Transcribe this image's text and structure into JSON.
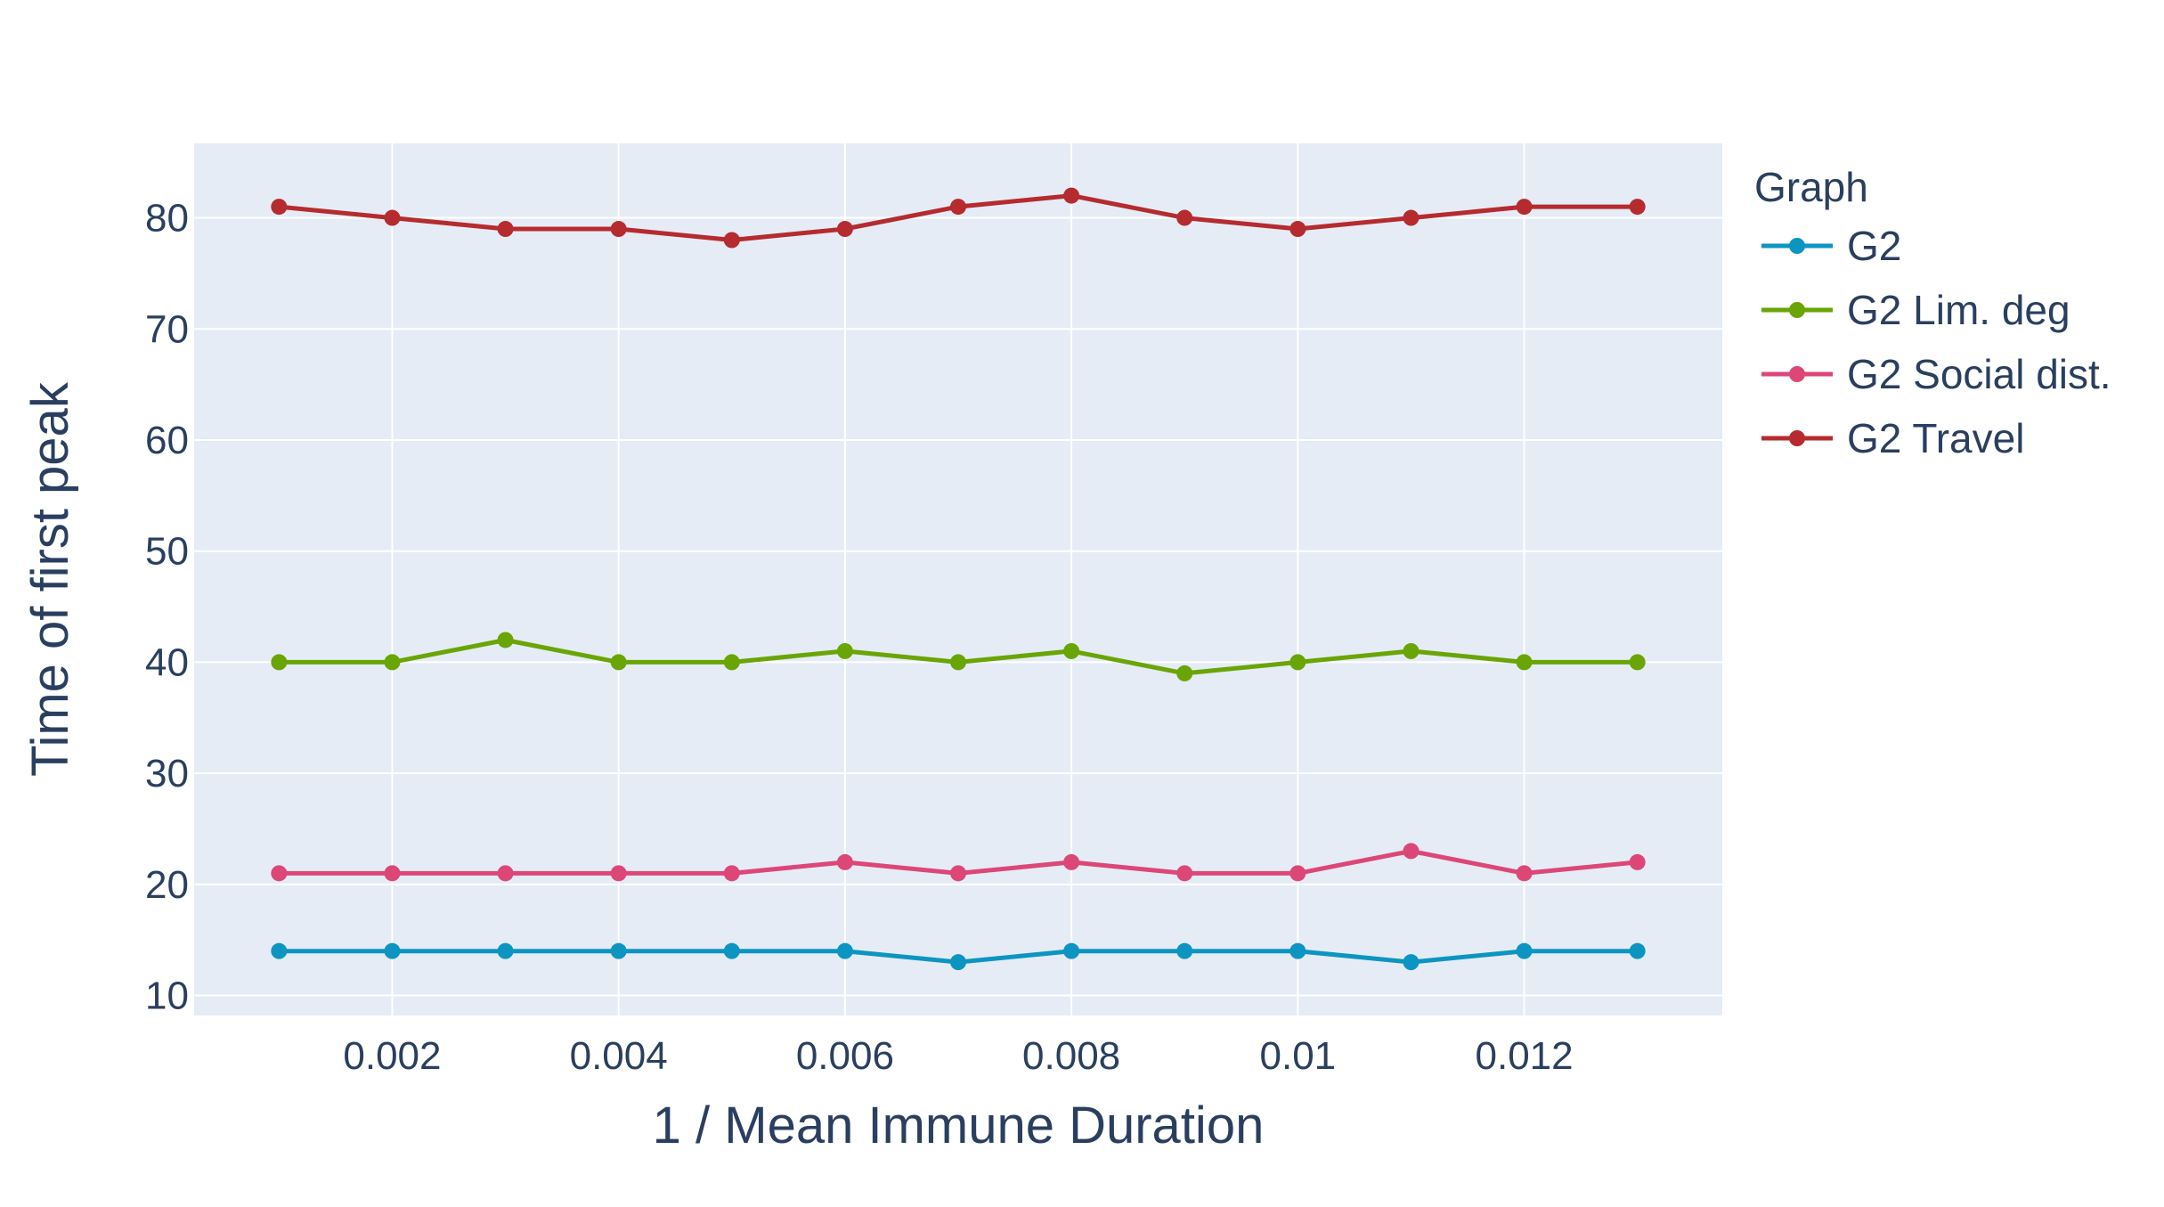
{
  "chart_data": {
    "type": "line",
    "xlabel": "1 / Mean Immune Duration",
    "ylabel": "Time of first peak",
    "xlim": [
      0.00025,
      0.01375
    ],
    "ylim": [
      8.2,
      86.7
    ],
    "x": [
      0.001,
      0.002,
      0.003,
      0.004,
      0.005,
      0.006,
      0.007,
      0.008,
      0.009,
      0.01,
      0.011,
      0.012,
      0.013
    ],
    "x_ticks": [
      0.002,
      0.004,
      0.006,
      0.008,
      0.01,
      0.012
    ],
    "x_tick_labels": [
      "0.002",
      "0.004",
      "0.006",
      "0.008",
      "0.01",
      "0.012"
    ],
    "y_ticks": [
      10,
      20,
      30,
      40,
      50,
      60,
      70,
      80
    ],
    "y_tick_labels": [
      "10",
      "20",
      "30",
      "40",
      "50",
      "60",
      "70",
      "80"
    ],
    "grid": true,
    "legend": {
      "title": "Graph",
      "position": "right"
    },
    "series": [
      {
        "name": "G2",
        "color": "#0c95c1",
        "values": [
          14,
          14,
          14,
          14,
          14,
          14,
          13,
          14,
          14,
          14,
          13,
          14,
          14
        ]
      },
      {
        "name": "G2 Lim. deg",
        "color": "#6aa506",
        "values": [
          40,
          40,
          42,
          40,
          40,
          41,
          40,
          41,
          39,
          40,
          41,
          40,
          40
        ]
      },
      {
        "name": "G2 Social dist.",
        "color": "#dc4778",
        "values": [
          21,
          21,
          21,
          21,
          21,
          22,
          21,
          22,
          21,
          21,
          23,
          21,
          22
        ]
      },
      {
        "name": "G2 Travel",
        "color": "#b52b2e",
        "values": [
          81,
          80,
          79,
          79,
          78,
          79,
          81,
          82,
          80,
          79,
          80,
          81,
          81
        ]
      }
    ],
    "plot_background": "#e5ecf6",
    "grid_color": "#ffffff",
    "text_color": "#2a3f5f"
  }
}
